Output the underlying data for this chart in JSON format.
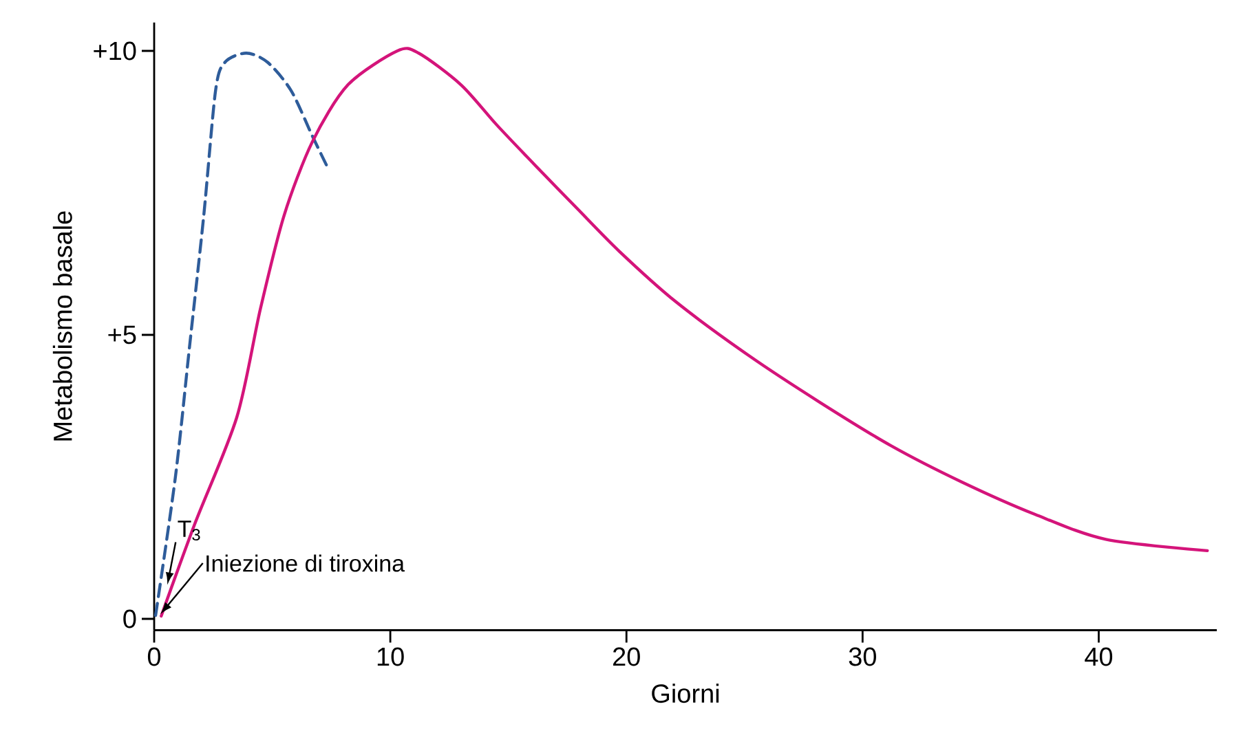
{
  "chart_data": {
    "type": "line",
    "xlabel": "Giorni",
    "ylabel": "Metabolismo basale",
    "xlim": [
      0,
      45
    ],
    "xticks": [
      0,
      10,
      20,
      30,
      40
    ],
    "ylim": [
      -0.2,
      10.5
    ],
    "yticks": [
      {
        "value": 0,
        "label": "0"
      },
      {
        "value": 5,
        "label": "+5"
      },
      {
        "value": 10,
        "label": "+10"
      }
    ],
    "series": [
      {
        "color": "#2e5c9a",
        "line_style": "dashed",
        "x": [
          0.06,
          0.9,
          1.5,
          2.1,
          2.6,
          3.0,
          3.9,
          4.8,
          5.8,
          6.7,
          7.4
        ],
        "values": [
          0.06,
          2.5,
          4.8,
          7.1,
          9.3,
          9.8,
          9.96,
          9.8,
          9.3,
          8.5,
          7.9
        ]
      },
      {
        "color": "#d4147a",
        "line_style": "solid",
        "x": [
          0.3,
          1.7,
          3.5,
          4.5,
          5.5,
          6.7,
          8.2,
          10.3,
          11.2,
          13,
          14.5,
          16.1,
          17.9,
          19.7,
          22.1,
          25.2,
          28.2,
          31.2,
          34.2,
          37.3,
          40.3,
          44.6
        ],
        "values": [
          0.05,
          1.65,
          3.55,
          5.46,
          7.1,
          8.4,
          9.4,
          10.0,
          9.96,
          9.4,
          8.7,
          8.0,
          7.23,
          6.47,
          5.58,
          4.63,
          3.81,
          3.05,
          2.41,
          1.84,
          1.4,
          1.2
        ]
      }
    ],
    "annotations": [
      {
        "text": "T$_{3}$",
        "x": 0.56,
        "y": 0.6
      },
      {
        "text": "Iniezione di tiroxina",
        "x": 0.26,
        "y": 0.08
      }
    ]
  }
}
